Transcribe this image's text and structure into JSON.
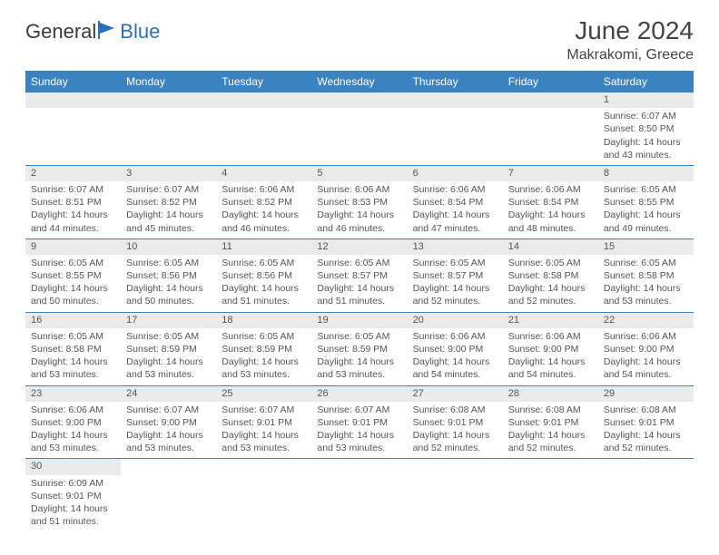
{
  "logo": {
    "general": "General",
    "blue": "Blue"
  },
  "header": {
    "title": "June 2024",
    "location": "Makrakomi, Greece"
  },
  "colors": {
    "header_bg": "#3b83c0",
    "header_text": "#ffffff",
    "cell_border": "#3b83c0",
    "daynum_bg": "#eaeaea",
    "body_text": "#555555",
    "title_text": "#444444",
    "logo_blue": "#2d6fb4"
  },
  "weekdays": [
    "Sunday",
    "Monday",
    "Tuesday",
    "Wednesday",
    "Thursday",
    "Friday",
    "Saturday"
  ],
  "weeks": [
    [
      null,
      null,
      null,
      null,
      null,
      null,
      {
        "n": "1",
        "sunrise": "Sunrise: 6:07 AM",
        "sunset": "Sunset: 8:50 PM",
        "d1": "Daylight: 14 hours",
        "d2": "and 43 minutes."
      }
    ],
    [
      {
        "n": "2",
        "sunrise": "Sunrise: 6:07 AM",
        "sunset": "Sunset: 8:51 PM",
        "d1": "Daylight: 14 hours",
        "d2": "and 44 minutes."
      },
      {
        "n": "3",
        "sunrise": "Sunrise: 6:07 AM",
        "sunset": "Sunset: 8:52 PM",
        "d1": "Daylight: 14 hours",
        "d2": "and 45 minutes."
      },
      {
        "n": "4",
        "sunrise": "Sunrise: 6:06 AM",
        "sunset": "Sunset: 8:52 PM",
        "d1": "Daylight: 14 hours",
        "d2": "and 46 minutes."
      },
      {
        "n": "5",
        "sunrise": "Sunrise: 6:06 AM",
        "sunset": "Sunset: 8:53 PM",
        "d1": "Daylight: 14 hours",
        "d2": "and 46 minutes."
      },
      {
        "n": "6",
        "sunrise": "Sunrise: 6:06 AM",
        "sunset": "Sunset: 8:54 PM",
        "d1": "Daylight: 14 hours",
        "d2": "and 47 minutes."
      },
      {
        "n": "7",
        "sunrise": "Sunrise: 6:06 AM",
        "sunset": "Sunset: 8:54 PM",
        "d1": "Daylight: 14 hours",
        "d2": "and 48 minutes."
      },
      {
        "n": "8",
        "sunrise": "Sunrise: 6:05 AM",
        "sunset": "Sunset: 8:55 PM",
        "d1": "Daylight: 14 hours",
        "d2": "and 49 minutes."
      }
    ],
    [
      {
        "n": "9",
        "sunrise": "Sunrise: 6:05 AM",
        "sunset": "Sunset: 8:55 PM",
        "d1": "Daylight: 14 hours",
        "d2": "and 50 minutes."
      },
      {
        "n": "10",
        "sunrise": "Sunrise: 6:05 AM",
        "sunset": "Sunset: 8:56 PM",
        "d1": "Daylight: 14 hours",
        "d2": "and 50 minutes."
      },
      {
        "n": "11",
        "sunrise": "Sunrise: 6:05 AM",
        "sunset": "Sunset: 8:56 PM",
        "d1": "Daylight: 14 hours",
        "d2": "and 51 minutes."
      },
      {
        "n": "12",
        "sunrise": "Sunrise: 6:05 AM",
        "sunset": "Sunset: 8:57 PM",
        "d1": "Daylight: 14 hours",
        "d2": "and 51 minutes."
      },
      {
        "n": "13",
        "sunrise": "Sunrise: 6:05 AM",
        "sunset": "Sunset: 8:57 PM",
        "d1": "Daylight: 14 hours",
        "d2": "and 52 minutes."
      },
      {
        "n": "14",
        "sunrise": "Sunrise: 6:05 AM",
        "sunset": "Sunset: 8:58 PM",
        "d1": "Daylight: 14 hours",
        "d2": "and 52 minutes."
      },
      {
        "n": "15",
        "sunrise": "Sunrise: 6:05 AM",
        "sunset": "Sunset: 8:58 PM",
        "d1": "Daylight: 14 hours",
        "d2": "and 53 minutes."
      }
    ],
    [
      {
        "n": "16",
        "sunrise": "Sunrise: 6:05 AM",
        "sunset": "Sunset: 8:58 PM",
        "d1": "Daylight: 14 hours",
        "d2": "and 53 minutes."
      },
      {
        "n": "17",
        "sunrise": "Sunrise: 6:05 AM",
        "sunset": "Sunset: 8:59 PM",
        "d1": "Daylight: 14 hours",
        "d2": "and 53 minutes."
      },
      {
        "n": "18",
        "sunrise": "Sunrise: 6:05 AM",
        "sunset": "Sunset: 8:59 PM",
        "d1": "Daylight: 14 hours",
        "d2": "and 53 minutes."
      },
      {
        "n": "19",
        "sunrise": "Sunrise: 6:05 AM",
        "sunset": "Sunset: 8:59 PM",
        "d1": "Daylight: 14 hours",
        "d2": "and 53 minutes."
      },
      {
        "n": "20",
        "sunrise": "Sunrise: 6:06 AM",
        "sunset": "Sunset: 9:00 PM",
        "d1": "Daylight: 14 hours",
        "d2": "and 54 minutes."
      },
      {
        "n": "21",
        "sunrise": "Sunrise: 6:06 AM",
        "sunset": "Sunset: 9:00 PM",
        "d1": "Daylight: 14 hours",
        "d2": "and 54 minutes."
      },
      {
        "n": "22",
        "sunrise": "Sunrise: 6:06 AM",
        "sunset": "Sunset: 9:00 PM",
        "d1": "Daylight: 14 hours",
        "d2": "and 54 minutes."
      }
    ],
    [
      {
        "n": "23",
        "sunrise": "Sunrise: 6:06 AM",
        "sunset": "Sunset: 9:00 PM",
        "d1": "Daylight: 14 hours",
        "d2": "and 53 minutes."
      },
      {
        "n": "24",
        "sunrise": "Sunrise: 6:07 AM",
        "sunset": "Sunset: 9:00 PM",
        "d1": "Daylight: 14 hours",
        "d2": "and 53 minutes."
      },
      {
        "n": "25",
        "sunrise": "Sunrise: 6:07 AM",
        "sunset": "Sunset: 9:01 PM",
        "d1": "Daylight: 14 hours",
        "d2": "and 53 minutes."
      },
      {
        "n": "26",
        "sunrise": "Sunrise: 6:07 AM",
        "sunset": "Sunset: 9:01 PM",
        "d1": "Daylight: 14 hours",
        "d2": "and 53 minutes."
      },
      {
        "n": "27",
        "sunrise": "Sunrise: 6:08 AM",
        "sunset": "Sunset: 9:01 PM",
        "d1": "Daylight: 14 hours",
        "d2": "and 52 minutes."
      },
      {
        "n": "28",
        "sunrise": "Sunrise: 6:08 AM",
        "sunset": "Sunset: 9:01 PM",
        "d1": "Daylight: 14 hours",
        "d2": "and 52 minutes."
      },
      {
        "n": "29",
        "sunrise": "Sunrise: 6:08 AM",
        "sunset": "Sunset: 9:01 PM",
        "d1": "Daylight: 14 hours",
        "d2": "and 52 minutes."
      }
    ],
    [
      {
        "n": "30",
        "sunrise": "Sunrise: 6:09 AM",
        "sunset": "Sunset: 9:01 PM",
        "d1": "Daylight: 14 hours",
        "d2": "and 51 minutes."
      },
      null,
      null,
      null,
      null,
      null,
      null
    ]
  ]
}
